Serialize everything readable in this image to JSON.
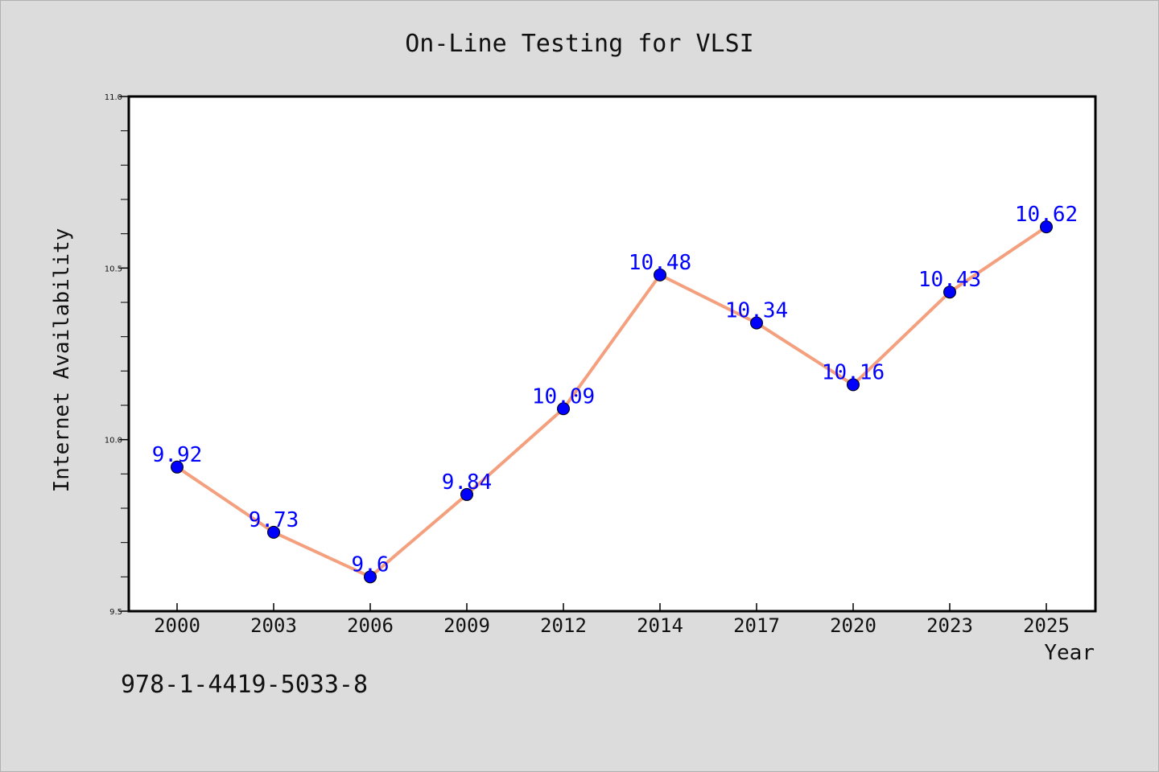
{
  "chart_data": {
    "type": "line",
    "title": "On-Line Testing for VLSI",
    "xlabel": "Year",
    "ylabel": "Internet Availability",
    "categories": [
      "2000",
      "2003",
      "2006",
      "2009",
      "2012",
      "2014",
      "2017",
      "2020",
      "2023",
      "2025"
    ],
    "series": [
      {
        "values": [
          9.92,
          9.73,
          9.6,
          9.84,
          10.09,
          10.48,
          10.34,
          10.16,
          10.43,
          10.62
        ],
        "data_labels": [
          "9.92",
          "9.73",
          "9.6",
          "9.84",
          "10.09",
          "10.48",
          "10.34",
          "10.16",
          "10.43",
          "10.62"
        ]
      }
    ],
    "ylim": [
      9.5,
      11.0
    ],
    "yticks": [
      "9.5",
      "10.0",
      "10.5",
      "11.0"
    ],
    "grid": false,
    "colors": {
      "line": "#f4a07e",
      "marker": "#0000ff",
      "label": "#0000ff",
      "axes": "#000000"
    }
  },
  "isbn": "978-1-4419-5033-8"
}
